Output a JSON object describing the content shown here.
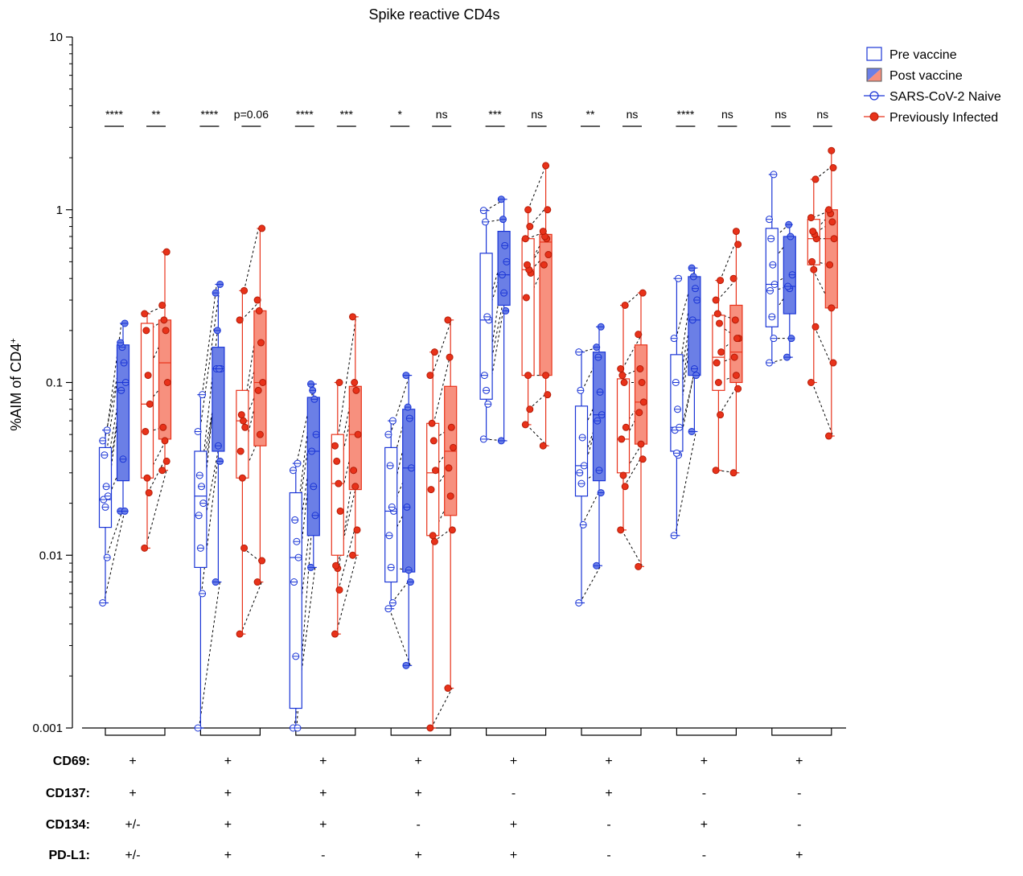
{
  "colors": {
    "naive": "#1a35d6",
    "naive_fill": "#6b7fe6",
    "infected": "#e8321a",
    "infected_fill": "#f7907e",
    "infected_point": "#e8321a"
  },
  "chart_data": {
    "type": "box",
    "title": "Spike reactive CD4s",
    "ylabel": "%AIM of CD4",
    "ylabel_superscript": "+",
    "yscale": "log",
    "ylim": [
      0.001,
      10
    ],
    "y_ticks": [
      {
        "value": 0.001,
        "label": "0.001"
      },
      {
        "value": 0.01,
        "label": "0.01"
      },
      {
        "value": 0.1,
        "label": "0.1"
      },
      {
        "value": 1,
        "label": "1"
      },
      {
        "value": 10,
        "label": "10"
      }
    ],
    "legend": {
      "position": "top-right",
      "entries": [
        {
          "key": "pre",
          "label": "Pre vaccine"
        },
        {
          "key": "post",
          "label": "Post vaccine"
        },
        {
          "key": "naive",
          "label": "SARS-CoV-2 Naive"
        },
        {
          "key": "infected",
          "label": "Previously Infected"
        }
      ]
    },
    "marker_rows": [
      {
        "name": "CD69:",
        "values": [
          "+",
          "+",
          "+",
          "+",
          "+",
          "+",
          "+",
          "+"
        ]
      },
      {
        "name": "CD137:",
        "values": [
          "+",
          "+",
          "+",
          "+",
          "-",
          "+",
          "-",
          "-"
        ]
      },
      {
        "name": "CD134:",
        "values": [
          "+/-",
          "+",
          "+",
          "-",
          "+",
          "-",
          "+",
          "-"
        ]
      },
      {
        "name": "PD-L1:",
        "values": [
          "+/-",
          "+",
          "-",
          "+",
          "+",
          "-",
          "-",
          "+"
        ]
      }
    ],
    "groups": [
      {
        "significance": {
          "naive": "****",
          "infected": "**"
        },
        "naive_pre": {
          "q1": 0.0145,
          "median": 0.021,
          "q3": 0.042,
          "min": 0.0053,
          "max": 0.053,
          "points": [
            0.0053,
            0.0097,
            0.019,
            0.021,
            0.022,
            0.025,
            0.038,
            0.046,
            0.053
          ]
        },
        "naive_post": {
          "q1": 0.027,
          "median": 0.1,
          "q3": 0.165,
          "min": 0.018,
          "max": 0.22,
          "points": [
            0.018,
            0.018,
            0.036,
            0.09,
            0.1,
            0.13,
            0.16,
            0.17,
            0.22
          ]
        },
        "inf_pre": {
          "q1": 0.028,
          "median": 0.075,
          "q3": 0.22,
          "min": 0.011,
          "max": 0.25,
          "points": [
            0.011,
            0.023,
            0.028,
            0.052,
            0.075,
            0.11,
            0.2,
            0.25
          ]
        },
        "inf_post": {
          "q1": 0.047,
          "median": 0.13,
          "q3": 0.23,
          "min": 0.031,
          "max": 0.57,
          "points": [
            0.031,
            0.035,
            0.046,
            0.055,
            0.1,
            0.2,
            0.23,
            0.28,
            0.57
          ]
        }
      },
      {
        "significance": {
          "naive": "****",
          "infected": "p=0.06"
        },
        "naive_pre": {
          "q1": 0.0085,
          "median": 0.022,
          "q3": 0.04,
          "min": 0.001,
          "max": 0.085,
          "points": [
            0.001,
            0.006,
            0.011,
            0.017,
            0.02,
            0.025,
            0.029,
            0.052,
            0.085
          ]
        },
        "naive_post": {
          "q1": 0.04,
          "median": 0.12,
          "q3": 0.16,
          "min": 0.007,
          "max": 0.37,
          "points": [
            0.007,
            0.035,
            0.043,
            0.12,
            0.12,
            0.12,
            0.2,
            0.33,
            0.37
          ]
        },
        "inf_pre": {
          "q1": 0.028,
          "median": 0.06,
          "q3": 0.09,
          "min": 0.0035,
          "max": 0.34,
          "points": [
            0.0035,
            0.011,
            0.028,
            0.04,
            0.055,
            0.06,
            0.065,
            0.23,
            0.34
          ]
        },
        "inf_post": {
          "q1": 0.043,
          "median": 0.1,
          "q3": 0.26,
          "min": 0.007,
          "max": 0.78,
          "points": [
            0.007,
            0.0093,
            0.05,
            0.09,
            0.1,
            0.17,
            0.26,
            0.3,
            0.78
          ]
        }
      },
      {
        "significance": {
          "naive": "****",
          "infected": "***"
        },
        "naive_pre": {
          "q1": 0.0013,
          "median": 0.0097,
          "q3": 0.023,
          "min": 0.001,
          "max": 0.034,
          "points": [
            0.001,
            0.001,
            0.0026,
            0.007,
            0.0097,
            0.012,
            0.016,
            0.031,
            0.034
          ]
        },
        "naive_post": {
          "q1": 0.013,
          "median": 0.04,
          "q3": 0.082,
          "min": 0.0085,
          "max": 0.098,
          "points": [
            0.0085,
            0.017,
            0.025,
            0.04,
            0.05,
            0.08,
            0.09,
            0.098
          ]
        },
        "inf_pre": {
          "q1": 0.01,
          "median": 0.026,
          "q3": 0.05,
          "min": 0.0035,
          "max": 0.1,
          "points": [
            0.0035,
            0.0063,
            0.0084,
            0.0087,
            0.018,
            0.026,
            0.035,
            0.043,
            0.1
          ]
        },
        "inf_post": {
          "q1": 0.024,
          "median": 0.05,
          "q3": 0.095,
          "min": 0.01,
          "max": 0.24,
          "points": [
            0.01,
            0.014,
            0.025,
            0.031,
            0.05,
            0.09,
            0.1,
            0.24
          ]
        }
      },
      {
        "significance": {
          "naive": "*",
          "infected": "ns"
        },
        "naive_pre": {
          "q1": 0.007,
          "median": 0.018,
          "q3": 0.042,
          "min": 0.0049,
          "max": 0.06,
          "points": [
            0.0049,
            0.0053,
            0.0085,
            0.013,
            0.018,
            0.019,
            0.033,
            0.05,
            0.06
          ]
        },
        "naive_post": {
          "q1": 0.008,
          "median": 0.032,
          "q3": 0.07,
          "min": 0.0023,
          "max": 0.11,
          "points": [
            0.0023,
            0.007,
            0.0082,
            0.019,
            0.032,
            0.062,
            0.072,
            0.11
          ]
        },
        "inf_pre": {
          "q1": 0.013,
          "median": 0.03,
          "q3": 0.058,
          "min": 0.001,
          "max": 0.15,
          "points": [
            0.001,
            0.012,
            0.013,
            0.024,
            0.031,
            0.046,
            0.058,
            0.11,
            0.15
          ]
        },
        "inf_post": {
          "q1": 0.017,
          "median": 0.04,
          "q3": 0.095,
          "min": 0.0017,
          "max": 0.23,
          "points": [
            0.0017,
            0.014,
            0.022,
            0.032,
            0.042,
            0.055,
            0.14,
            0.23
          ]
        }
      },
      {
        "significance": {
          "naive": "***",
          "infected": "ns"
        },
        "naive_pre": {
          "q1": 0.08,
          "median": 0.23,
          "q3": 0.56,
          "min": 0.047,
          "max": 0.99,
          "points": [
            0.047,
            0.075,
            0.09,
            0.11,
            0.23,
            0.24,
            0.85,
            0.99
          ]
        },
        "naive_post": {
          "q1": 0.28,
          "median": 0.42,
          "q3": 0.75,
          "min": 0.046,
          "max": 1.15,
          "points": [
            0.046,
            0.26,
            0.33,
            0.42,
            0.5,
            0.62,
            0.88,
            1.15
          ]
        },
        "inf_pre": {
          "q1": 0.11,
          "median": 0.45,
          "q3": 0.68,
          "min": 0.057,
          "max": 1.0,
          "points": [
            0.057,
            0.07,
            0.11,
            0.31,
            0.43,
            0.45,
            0.48,
            0.68,
            0.8,
            1.0
          ]
        },
        "inf_post": {
          "q1": 0.11,
          "median": 0.65,
          "q3": 0.72,
          "min": 0.043,
          "max": 1.8,
          "points": [
            0.043,
            0.085,
            0.11,
            0.48,
            0.55,
            0.68,
            0.7,
            0.75,
            1.0,
            1.8
          ]
        }
      },
      {
        "significance": {
          "naive": "**",
          "infected": "ns"
        },
        "naive_pre": {
          "q1": 0.022,
          "median": 0.033,
          "q3": 0.073,
          "min": 0.0053,
          "max": 0.15,
          "points": [
            0.0053,
            0.015,
            0.026,
            0.03,
            0.033,
            0.048,
            0.09,
            0.15
          ]
        },
        "naive_post": {
          "q1": 0.027,
          "median": 0.065,
          "q3": 0.15,
          "min": 0.0087,
          "max": 0.21,
          "points": [
            0.0087,
            0.023,
            0.031,
            0.06,
            0.065,
            0.088,
            0.14,
            0.16,
            0.21
          ]
        },
        "inf_pre": {
          "q1": 0.03,
          "median": 0.047,
          "q3": 0.105,
          "min": 0.014,
          "max": 0.28,
          "points": [
            0.014,
            0.025,
            0.029,
            0.047,
            0.055,
            0.1,
            0.11,
            0.12,
            0.28
          ]
        },
        "inf_post": {
          "q1": 0.044,
          "median": 0.077,
          "q3": 0.165,
          "min": 0.0086,
          "max": 0.33,
          "points": [
            0.0086,
            0.036,
            0.044,
            0.067,
            0.077,
            0.1,
            0.12,
            0.19,
            0.33
          ]
        }
      },
      {
        "significance": {
          "naive": "****",
          "infected": "ns"
        },
        "naive_pre": {
          "q1": 0.04,
          "median": 0.055,
          "q3": 0.145,
          "min": 0.013,
          "max": 0.4,
          "points": [
            0.013,
            0.038,
            0.039,
            0.053,
            0.055,
            0.07,
            0.1,
            0.18,
            0.4
          ]
        },
        "naive_post": {
          "q1": 0.11,
          "median": 0.23,
          "q3": 0.41,
          "min": 0.052,
          "max": 0.46,
          "points": [
            0.052,
            0.11,
            0.12,
            0.23,
            0.3,
            0.35,
            0.41,
            0.46
          ]
        },
        "inf_pre": {
          "q1": 0.09,
          "median": 0.14,
          "q3": 0.245,
          "min": 0.031,
          "max": 0.39,
          "points": [
            0.031,
            0.065,
            0.1,
            0.13,
            0.15,
            0.22,
            0.25,
            0.3,
            0.39
          ]
        },
        "inf_post": {
          "q1": 0.1,
          "median": 0.15,
          "q3": 0.28,
          "min": 0.03,
          "max": 0.75,
          "points": [
            0.03,
            0.092,
            0.11,
            0.14,
            0.18,
            0.18,
            0.23,
            0.4,
            0.63,
            0.75
          ]
        }
      },
      {
        "significance": {
          "naive": "ns",
          "infected": "ns"
        },
        "naive_pre": {
          "q1": 0.21,
          "median": 0.37,
          "q3": 0.78,
          "min": 0.13,
          "max": 1.6,
          "points": [
            0.13,
            0.18,
            0.24,
            0.34,
            0.37,
            0.48,
            0.68,
            0.88,
            1.6
          ]
        },
        "naive_post": {
          "q1": 0.25,
          "median": 0.36,
          "q3": 0.7,
          "min": 0.14,
          "max": 0.82,
          "points": [
            0.14,
            0.18,
            0.35,
            0.36,
            0.42,
            0.7,
            0.82
          ]
        },
        "inf_pre": {
          "q1": 0.48,
          "median": 0.68,
          "q3": 0.88,
          "min": 0.1,
          "max": 1.5,
          "points": [
            0.1,
            0.21,
            0.45,
            0.5,
            0.68,
            0.72,
            0.75,
            0.9,
            1.5
          ]
        },
        "inf_post": {
          "q1": 0.27,
          "median": 0.68,
          "q3": 1.0,
          "min": 0.049,
          "max": 2.2,
          "points": [
            0.049,
            0.13,
            0.27,
            0.48,
            0.68,
            0.85,
            0.95,
            1.0,
            1.75,
            2.2
          ]
        }
      }
    ]
  }
}
